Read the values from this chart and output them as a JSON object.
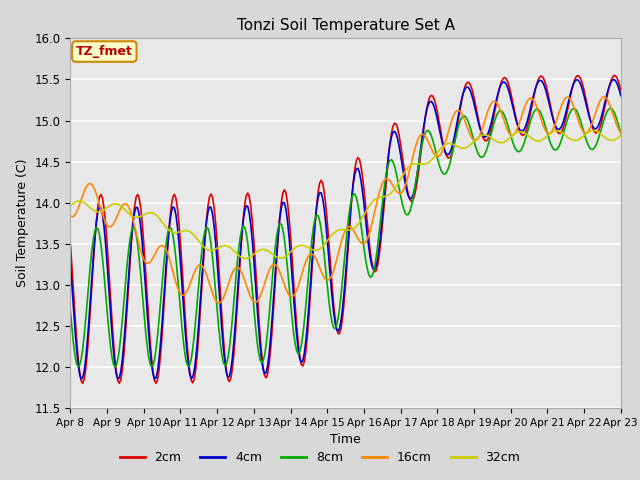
{
  "title": "Tonzi Soil Temperature Set A",
  "xlabel": "Time",
  "ylabel": "Soil Temperature (C)",
  "ylim": [
    11.5,
    16.0
  ],
  "yticks": [
    11.5,
    12.0,
    12.5,
    13.0,
    13.5,
    14.0,
    14.5,
    15.0,
    15.5,
    16.0
  ],
  "series_colors": [
    "#dd0000",
    "#0000cc",
    "#00aa00",
    "#ff8800",
    "#cccc00"
  ],
  "series_labels": [
    "2cm",
    "4cm",
    "8cm",
    "16cm",
    "32cm"
  ],
  "legend_label": "TZ_fmet",
  "background_color": "#d8d8d8",
  "plot_bg_color": "#e8e8e8",
  "linewidth": 1.2,
  "xtick_labels": [
    "Apr 8",
    "Apr 9",
    "Apr 10",
    "Apr 11",
    "Apr 12",
    "Apr 13",
    "Apr 14",
    "Apr 15",
    "Apr 16",
    "Apr 17",
    "Apr 18",
    "Apr 19",
    "Apr 20",
    "Apr 21",
    "Apr 22",
    "Apr 23"
  ]
}
